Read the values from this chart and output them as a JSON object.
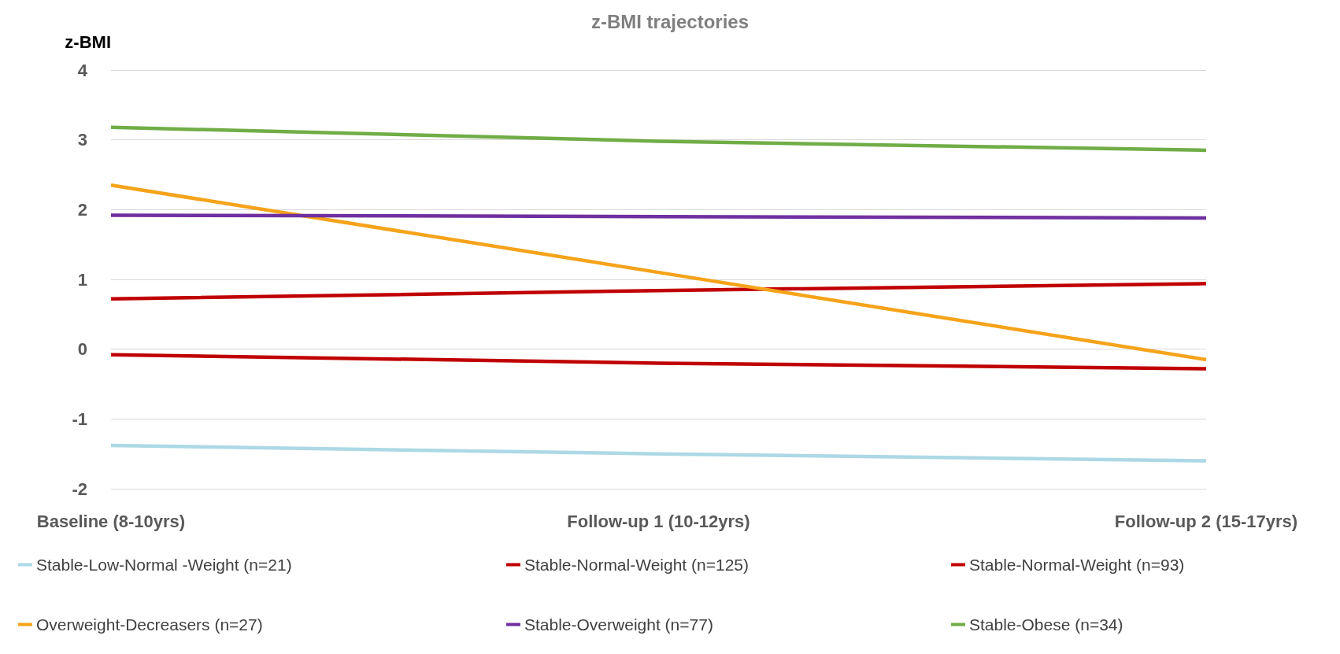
{
  "chart_data": {
    "type": "line",
    "title": "z-BMI trajectories",
    "ylabel": "z-BMI",
    "categories": [
      "Baseline (8-10yrs)",
      "Follow-up 1 (10-12yrs)",
      "Follow-up 2 (15-17yrs)"
    ],
    "series": [
      {
        "name": "Stable-Low-Normal -Weight (n=21)",
        "color": "#add8e6",
        "values": [
          -1.38,
          -1.5,
          -1.6
        ]
      },
      {
        "name": "Stable-Normal-Weight (n=125)",
        "color": "#c00000",
        "values": [
          0.72,
          0.84,
          0.94
        ]
      },
      {
        "name": "Stable-Normal-Weight (n=93)",
        "color": "#c00000",
        "values": [
          -0.08,
          -0.2,
          -0.28
        ]
      },
      {
        "name": "Overweight-Decreasers (n=27)",
        "color": "#f5a31a",
        "values": [
          2.35,
          1.1,
          -0.15
        ]
      },
      {
        "name": "Stable-Overweight (n=77)",
        "color": "#7030a0",
        "values": [
          1.92,
          1.9,
          1.88
        ]
      },
      {
        "name": "Stable-Obese (n=34)",
        "color": "#70ad47",
        "values": [
          3.18,
          2.98,
          2.85
        ]
      }
    ],
    "ylim": [
      -2,
      4
    ],
    "yticks": [
      -2,
      -1,
      0,
      1,
      2,
      3,
      4
    ],
    "grid": "y",
    "legend": "bottom",
    "marker": "none",
    "line_style": "solid"
  }
}
